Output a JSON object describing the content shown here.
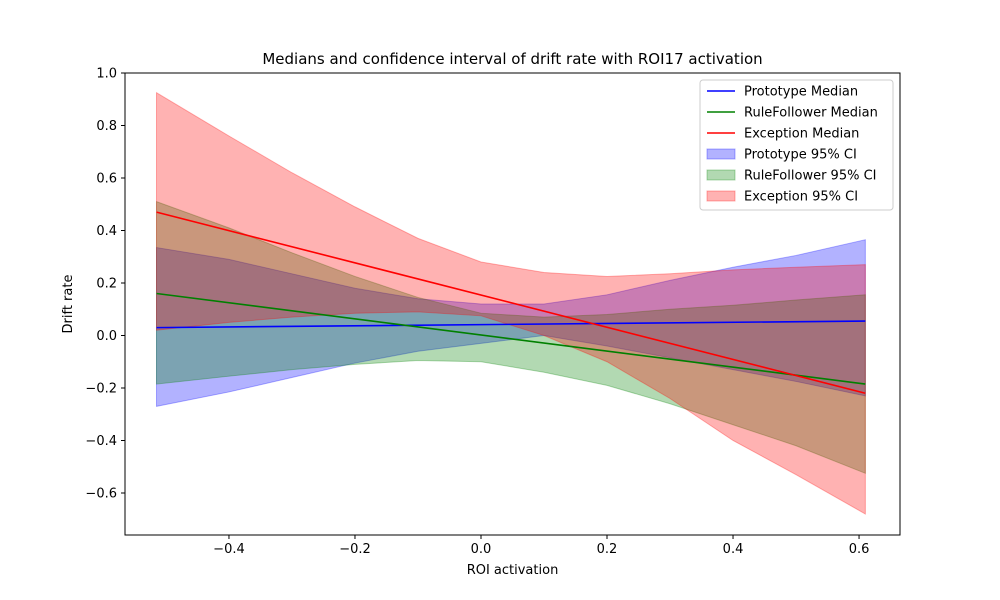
{
  "chart_data": {
    "type": "line",
    "title": "Medians and confidence interval of drift rate with ROI17 activation",
    "xlabel": "ROI activation",
    "ylabel": "Drift rate",
    "xlim": [
      -0.565,
      0.665
    ],
    "ylim": [
      -0.76,
      1.0
    ],
    "xticks": [
      -0.4,
      -0.2,
      0.0,
      0.2,
      0.4,
      0.6
    ],
    "xtick_labels": [
      "−0.4",
      "−0.2",
      "0.0",
      "0.2",
      "0.4",
      "0.6"
    ],
    "yticks": [
      -0.6,
      -0.4,
      -0.2,
      0.0,
      0.2,
      0.4,
      0.6,
      0.8,
      1.0
    ],
    "ytick_labels": [
      "−0.6",
      "−0.4",
      "−0.2",
      "0.0",
      "0.2",
      "0.4",
      "0.6",
      "0.8",
      "1.0"
    ],
    "grid": false,
    "legend_position": "top-right",
    "series": [
      {
        "name": "Prototype Median",
        "kind": "line",
        "color": "#0000ff",
        "x": [
          -0.515,
          0.61
        ],
        "y": [
          0.03,
          0.055
        ]
      },
      {
        "name": "RuleFollower Median",
        "kind": "line",
        "color": "#008000",
        "x": [
          -0.515,
          0.61
        ],
        "y": [
          0.16,
          -0.185
        ]
      },
      {
        "name": "Exception Median",
        "kind": "line",
        "color": "#ff0000",
        "x": [
          -0.515,
          0.61
        ],
        "y": [
          0.47,
          -0.22
        ]
      },
      {
        "name": "Prototype 95% CI",
        "kind": "band",
        "color": "#0000ff",
        "x": [
          -0.515,
          -0.4,
          -0.3,
          -0.2,
          -0.1,
          0.0,
          0.1,
          0.2,
          0.3,
          0.4,
          0.5,
          0.61
        ],
        "lower": [
          -0.27,
          -0.215,
          -0.16,
          -0.105,
          -0.06,
          -0.03,
          0.0,
          -0.04,
          -0.085,
          -0.13,
          -0.175,
          -0.23
        ],
        "upper": [
          0.335,
          0.29,
          0.235,
          0.18,
          0.14,
          0.12,
          0.12,
          0.155,
          0.21,
          0.26,
          0.305,
          0.365
        ]
      },
      {
        "name": "RuleFollower 95% CI",
        "kind": "band",
        "color": "#008000",
        "x": [
          -0.515,
          -0.4,
          -0.3,
          -0.2,
          -0.1,
          0.0,
          0.1,
          0.2,
          0.3,
          0.4,
          0.5,
          0.61
        ],
        "lower": [
          -0.185,
          -0.155,
          -0.13,
          -0.11,
          -0.095,
          -0.1,
          -0.14,
          -0.19,
          -0.26,
          -0.34,
          -0.42,
          -0.525
        ],
        "upper": [
          0.51,
          0.41,
          0.315,
          0.225,
          0.145,
          0.085,
          0.07,
          0.08,
          0.1,
          0.115,
          0.135,
          0.155
        ]
      },
      {
        "name": "Exception 95% CI",
        "kind": "band",
        "color": "#ff0000",
        "x": [
          -0.515,
          -0.4,
          -0.3,
          -0.2,
          -0.1,
          0.0,
          0.1,
          0.2,
          0.3,
          0.4,
          0.5,
          0.61
        ],
        "lower": [
          0.02,
          0.05,
          0.07,
          0.085,
          0.09,
          0.075,
          0.0,
          -0.1,
          -0.24,
          -0.4,
          -0.53,
          -0.68
        ],
        "upper": [
          0.925,
          0.76,
          0.62,
          0.49,
          0.37,
          0.28,
          0.24,
          0.225,
          0.235,
          0.25,
          0.26,
          0.27
        ]
      }
    ]
  }
}
